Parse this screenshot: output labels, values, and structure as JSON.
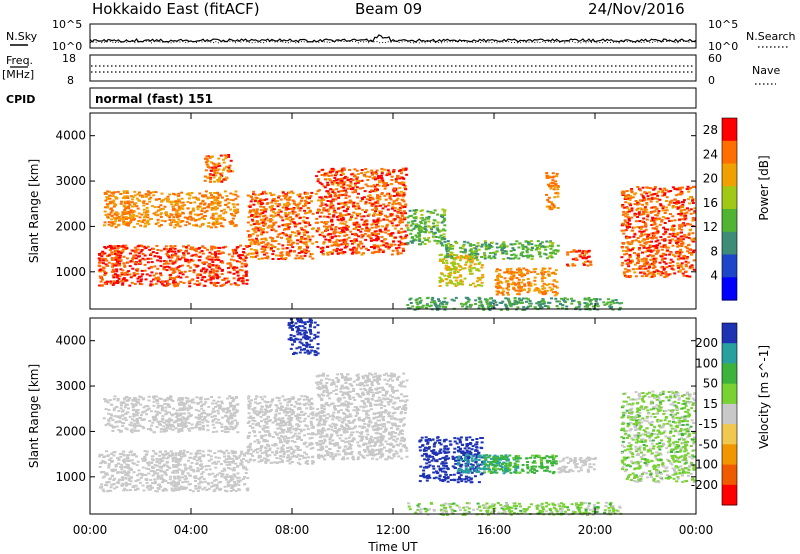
{
  "header": {
    "site": "Hokkaido East (fitACF)",
    "beam": "Beam 09",
    "date": "24/Nov/2016"
  },
  "noise_panel": {
    "left_label": "N.Sky",
    "right_label": "N.Search",
    "left_ticks": [
      "10^5",
      "10^0"
    ],
    "right_ticks": [
      "10^5",
      "10^0"
    ]
  },
  "freq_panel": {
    "label_top": "Freq.",
    "label_unit": "[MHz]",
    "left_ticks": [
      "18",
      "8"
    ],
    "right_label": "Nave",
    "right_ticks": [
      "60",
      "0"
    ]
  },
  "cpid": {
    "label": "CPID",
    "value": "normal (fast) 151"
  },
  "chart_data": [
    {
      "type": "heatmap",
      "name": "Power",
      "ylabel": "Slant Range [km]",
      "xlabel": "Time UT",
      "x_ticks": [
        "00:00",
        "04:00",
        "08:00",
        "12:00",
        "16:00",
        "20:00",
        "00:00"
      ],
      "x_range_hours": [
        0,
        24
      ],
      "y_ticks": [
        1000,
        2000,
        3000,
        4000
      ],
      "y_range_km": [
        180,
        4500
      ],
      "colorbar": {
        "label": "Power [dB]",
        "ticks": [
          4,
          8,
          12,
          16,
          20,
          24,
          28
        ],
        "range": [
          0,
          30
        ],
        "colors": [
          "#0000ff",
          "#1e46c8",
          "#3c8c78",
          "#50b432",
          "#a0c814",
          "#f0a000",
          "#ff6e00",
          "#ff0000"
        ]
      },
      "regions": [
        {
          "t": [
            0.3,
            6.2
          ],
          "r": [
            700,
            1600
          ],
          "v": 28
        },
        {
          "t": [
            0.5,
            5.8
          ],
          "r": [
            2000,
            2800
          ],
          "v": 24
        },
        {
          "t": [
            4.5,
            5.6
          ],
          "r": [
            3000,
            3600
          ],
          "v": 26
        },
        {
          "t": [
            6.2,
            8.8
          ],
          "r": [
            1300,
            2800
          ],
          "v": 26
        },
        {
          "t": [
            8.9,
            12.5
          ],
          "r": [
            1400,
            3300
          ],
          "v": 27
        },
        {
          "t": [
            12.5,
            14.0
          ],
          "r": [
            1600,
            2400
          ],
          "v": 14
        },
        {
          "t": [
            13.8,
            15.5
          ],
          "r": [
            700,
            1400
          ],
          "v": 20
        },
        {
          "t": [
            14.0,
            18.5
          ],
          "r": [
            1300,
            1700
          ],
          "v": 14
        },
        {
          "t": [
            16.0,
            18.5
          ],
          "r": [
            500,
            1100
          ],
          "v": 24
        },
        {
          "t": [
            18.0,
            18.5
          ],
          "r": [
            2400,
            3200
          ],
          "v": 24
        },
        {
          "t": [
            18.8,
            19.8
          ],
          "r": [
            1150,
            1500
          ],
          "v": 27
        },
        {
          "t": [
            21.0,
            23.9
          ],
          "r": [
            900,
            2900
          ],
          "v": 27
        },
        {
          "t": [
            12.5,
            21.0
          ],
          "r": [
            180,
            450
          ],
          "v": 12
        }
      ]
    },
    {
      "type": "heatmap",
      "name": "Velocity",
      "ylabel": "Slant Range [km]",
      "xlabel": "Time UT",
      "x_ticks": [
        "00:00",
        "04:00",
        "08:00",
        "12:00",
        "16:00",
        "20:00",
        "00:00"
      ],
      "x_range_hours": [
        0,
        24
      ],
      "y_ticks": [
        1000,
        2000,
        3000,
        4000
      ],
      "y_range_km": [
        180,
        4500
      ],
      "colorbar": {
        "label": "Velocity [m s^-1]",
        "ticks": [
          "200",
          "100",
          "50",
          "15",
          "-15",
          "-50",
          "-100",
          "-200"
        ],
        "colors": [
          "#1e32b4",
          "#28a0a0",
          "#3cb43c",
          "#78d232",
          "#c8c8c8",
          "#f0c850",
          "#f09600",
          "#f05a00",
          "#ff0000"
        ]
      },
      "regions": [
        {
          "t": [
            0.3,
            6.2
          ],
          "r": [
            700,
            1600
          ],
          "v": 0
        },
        {
          "t": [
            0.5,
            5.8
          ],
          "r": [
            2000,
            2800
          ],
          "v": 0
        },
        {
          "t": [
            6.2,
            8.8
          ],
          "r": [
            1300,
            2800
          ],
          "v": 0
        },
        {
          "t": [
            8.9,
            12.5
          ],
          "r": [
            1400,
            3300
          ],
          "v": 0
        },
        {
          "t": [
            7.8,
            9.0
          ],
          "r": [
            3700,
            4500
          ],
          "v": 200
        },
        {
          "t": [
            13.0,
            15.5
          ],
          "r": [
            900,
            1900
          ],
          "v": 180
        },
        {
          "t": [
            14.5,
            17.0
          ],
          "r": [
            1100,
            1500
          ],
          "v": 90
        },
        {
          "t": [
            15.5,
            18.5
          ],
          "r": [
            1100,
            1500
          ],
          "v": 40
        },
        {
          "t": [
            18.5,
            20.0
          ],
          "r": [
            1100,
            1450
          ],
          "v": 0
        },
        {
          "t": [
            12.5,
            21.0
          ],
          "r": [
            180,
            450
          ],
          "v": 20
        },
        {
          "t": [
            21.0,
            23.9
          ],
          "r": [
            900,
            2900
          ],
          "v": 20
        }
      ]
    }
  ]
}
